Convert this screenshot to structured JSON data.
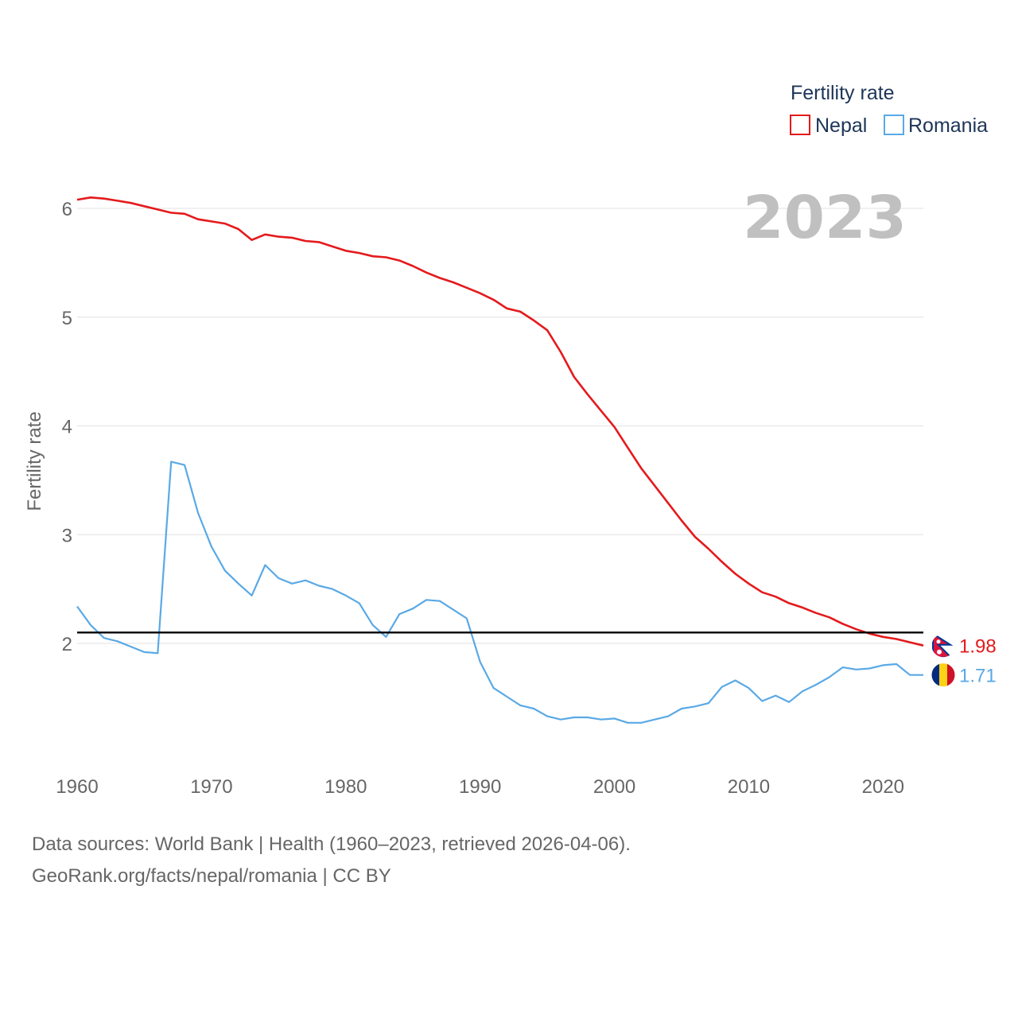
{
  "chart_data": {
    "type": "line",
    "year_label": "2023",
    "ylabel": "Fertility rate",
    "xlabel": "",
    "xlim": [
      1960,
      2023
    ],
    "ylim": [
      1,
      6.3
    ],
    "x_ticks": [
      1960,
      1970,
      1980,
      1990,
      2000,
      2010,
      2020
    ],
    "y_ticks": [
      2,
      3,
      4,
      5,
      6
    ],
    "legend": {
      "title": "Fertility rate",
      "position": "top-right"
    },
    "reference_line": {
      "value": 2.1,
      "color": "#000000"
    },
    "x": [
      1960,
      1961,
      1962,
      1963,
      1964,
      1965,
      1966,
      1967,
      1968,
      1969,
      1970,
      1971,
      1972,
      1973,
      1974,
      1975,
      1976,
      1977,
      1978,
      1979,
      1980,
      1981,
      1982,
      1983,
      1984,
      1985,
      1986,
      1987,
      1988,
      1989,
      1990,
      1991,
      1992,
      1993,
      1994,
      1995,
      1996,
      1997,
      1998,
      1999,
      2000,
      2001,
      2002,
      2003,
      2004,
      2005,
      2006,
      2007,
      2008,
      2009,
      2010,
      2011,
      2012,
      2013,
      2014,
      2015,
      2016,
      2017,
      2018,
      2019,
      2020,
      2021,
      2022,
      2023
    ],
    "series": [
      {
        "name": "Nepal",
        "color": "#e41a1c",
        "end_label": "1.98",
        "flag": "nepal-flag",
        "values": [
          6.08,
          6.1,
          6.09,
          6.07,
          6.05,
          6.02,
          5.99,
          5.96,
          5.95,
          5.9,
          5.88,
          5.86,
          5.81,
          5.71,
          5.76,
          5.74,
          5.73,
          5.7,
          5.69,
          5.65,
          5.61,
          5.59,
          5.56,
          5.55,
          5.52,
          5.47,
          5.41,
          5.36,
          5.32,
          5.27,
          5.22,
          5.16,
          5.08,
          5.05,
          4.97,
          4.88,
          4.68,
          4.45,
          4.29,
          4.14,
          3.99,
          3.8,
          3.61,
          3.45,
          3.29,
          3.13,
          2.98,
          2.87,
          2.75,
          2.64,
          2.55,
          2.47,
          2.43,
          2.37,
          2.33,
          2.28,
          2.24,
          2.18,
          2.13,
          2.09,
          2.06,
          2.04,
          2.01,
          1.98
        ]
      },
      {
        "name": "Romania",
        "color": "#5aa9e6",
        "end_label": "1.71",
        "flag": "romania-flag",
        "values": [
          2.34,
          2.17,
          2.05,
          2.02,
          1.97,
          1.92,
          1.91,
          3.67,
          3.64,
          3.2,
          2.89,
          2.67,
          2.55,
          2.44,
          2.72,
          2.6,
          2.55,
          2.58,
          2.53,
          2.5,
          2.44,
          2.37,
          2.17,
          2.06,
          2.27,
          2.32,
          2.4,
          2.39,
          2.31,
          2.23,
          1.83,
          1.59,
          1.51,
          1.43,
          1.4,
          1.33,
          1.3,
          1.32,
          1.32,
          1.3,
          1.31,
          1.27,
          1.27,
          1.3,
          1.33,
          1.4,
          1.42,
          1.45,
          1.6,
          1.66,
          1.59,
          1.47,
          1.52,
          1.46,
          1.56,
          1.62,
          1.69,
          1.78,
          1.76,
          1.77,
          1.8,
          1.81,
          1.71,
          1.71
        ]
      }
    ]
  },
  "source": {
    "line1": "Data sources: World Bank | Health (1960–2023, retrieved 2026-04-06).",
    "line2": "GeoRank.org/facts/nepal/romania | CC BY"
  }
}
